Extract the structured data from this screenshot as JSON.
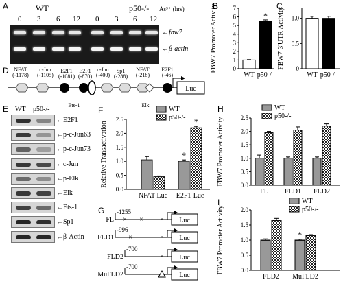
{
  "panels": {
    "A": "A",
    "B": "B",
    "C": "C",
    "D": "D",
    "E": "E",
    "F": "F",
    "G": "G",
    "H": "H",
    "I": "I"
  },
  "panelA": {
    "group_wt": "WT",
    "group_ko": "p50-/-",
    "treatment": "As³⁺ (hrs)",
    "times": [
      "0",
      "3",
      "6",
      "12",
      "0",
      "3",
      "6",
      "12"
    ],
    "bands": [
      "fbw7",
      "β-actin"
    ]
  },
  "panelB": {
    "chart_data": {
      "type": "bar",
      "categories": [
        "WT",
        "p50-/-"
      ],
      "values": [
        1.0,
        5.5
      ],
      "errors": [
        0.05,
        0.15
      ],
      "ylabel": "FBW7 Promoter Activity",
      "ylim": [
        0,
        7
      ],
      "yticks": [
        0,
        1,
        2,
        3,
        4,
        5,
        6,
        7
      ],
      "significance": [
        "",
        "*"
      ],
      "colors": [
        "#ffffff",
        "#000000"
      ]
    }
  },
  "panelC": {
    "chart_data": {
      "type": "bar",
      "categories": [
        "WT",
        "p50-/-"
      ],
      "values": [
        1.0,
        1.0
      ],
      "errors": [
        0.04,
        0.04
      ],
      "ylabel": "FBW7-3'UTR Activity",
      "ylim": [
        0,
        1.2
      ],
      "yticks": [
        "0",
        "0.5",
        "1.0"
      ],
      "colors": [
        "#ffffff",
        "#000000"
      ]
    }
  },
  "panelD": {
    "sites": [
      {
        "name": "NFAT",
        "pos": "(-1178)"
      },
      {
        "name": "c-Jun",
        "pos": "(-1105)"
      },
      {
        "name": "E2F1",
        "pos": "(-1081)"
      },
      {
        "name": "E2F1",
        "pos": "(-870)"
      },
      {
        "name": "Ets-1",
        "pos": "(-856)"
      },
      {
        "name": "c-Jun",
        "pos": "(-400)"
      },
      {
        "name": "Sp1",
        "pos": "(-288)"
      },
      {
        "name": "NFAT",
        "pos": "(-218)"
      },
      {
        "name": "Elk",
        "pos": "(-122)"
      },
      {
        "name": "E2F1",
        "pos": "(-46)"
      }
    ],
    "reporter": "Luc"
  },
  "panelE": {
    "header": [
      "WT",
      "p50-/-"
    ],
    "bands": [
      "E2F1",
      "p-c-Jun63",
      "p-c-Jun73",
      "c-Jun",
      "p-Elk",
      "Elk",
      "Ets-1",
      "Sp1",
      "β-Actin"
    ]
  },
  "panelF": {
    "chart_data": {
      "type": "bar",
      "categories": [
        "NFAT-Luc",
        "E2F1-Luc"
      ],
      "series": [
        {
          "name": "WT",
          "values": [
            1.05,
            1.0
          ]
        },
        {
          "name": "p50-/-",
          "values": [
            0.45,
            2.2
          ]
        }
      ],
      "errors": [
        [
          0.12,
          0.05
        ],
        [
          0.03,
          0.05
        ]
      ],
      "ylabel": "Relative Transactivation",
      "ylim": [
        0,
        2.5
      ],
      "yticks": [
        "0.0",
        "0.5",
        "1.0",
        "1.5",
        "2.0",
        "2.5"
      ],
      "significance": [
        [
          "",
          "*"
        ],
        [
          "",
          "*"
        ]
      ]
    }
  },
  "panelG": {
    "constructs": [
      {
        "name": "FL",
        "start": "-1255"
      },
      {
        "name": "FLD1",
        "start": "-996"
      },
      {
        "name": "FLD2",
        "start": "-700"
      },
      {
        "name": "MuFLD2",
        "start": "-700"
      }
    ],
    "reporter": "Luc"
  },
  "panelH": {
    "chart_data": {
      "type": "bar",
      "categories": [
        "FL",
        "FLD1",
        "FLD2"
      ],
      "series": [
        {
          "name": "WT",
          "values": [
            1.0,
            1.0,
            1.0
          ]
        },
        {
          "name": "p50-/-",
          "values": [
            1.95,
            2.05,
            2.2
          ]
        }
      ],
      "errors": [
        [
          0.12,
          0.05,
          0.05
        ],
        [
          0.05,
          0.12,
          0.08
        ]
      ],
      "ylabel": "FBW7 Promoter Activity",
      "ylim": [
        0,
        2.5
      ],
      "yticks": [
        "0.0",
        "0.5",
        "1.0",
        "1.5",
        "2.0",
        "2.5"
      ],
      "legend": [
        "WT",
        "p50-/-"
      ]
    }
  },
  "panelI": {
    "chart_data": {
      "type": "bar",
      "categories": [
        "FLD2",
        "MuFLD2"
      ],
      "series": [
        {
          "name": "WT",
          "values": [
            1.0,
            1.0
          ]
        },
        {
          "name": "p50-/-",
          "values": [
            1.65,
            1.15
          ]
        }
      ],
      "errors": [
        [
          0.04,
          0.03
        ],
        [
          0.07,
          0.03
        ]
      ],
      "ylabel": "FBW7 Promoter Activity",
      "ylim": [
        0,
        2.0
      ],
      "yticks": [
        "0.0",
        "0.5",
        "1.0",
        "1.5",
        "2.0"
      ],
      "significance": [
        [
          "",
          "*"
        ],
        [
          "",
          ""
        ]
      ],
      "legend": [
        "WT",
        "p50-/-"
      ]
    }
  }
}
